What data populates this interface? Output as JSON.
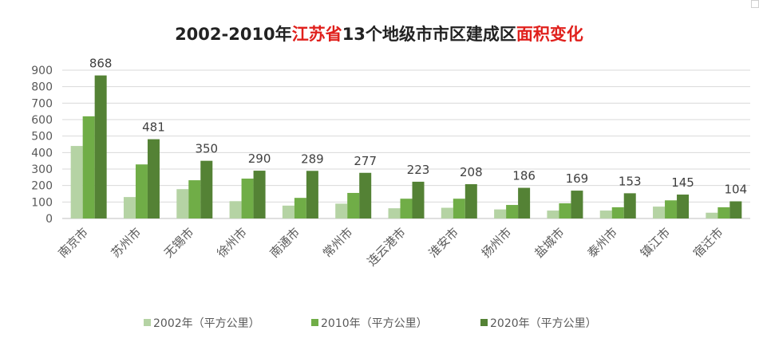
{
  "chart_data": {
    "type": "bar",
    "title": {
      "segments": [
        {
          "text": "2002-2010年",
          "color": "#222222"
        },
        {
          "text": "江苏省",
          "color": "#e0201c"
        },
        {
          "text": "13个地级市市区建成区",
          "color": "#222222"
        },
        {
          "text": "面积变化",
          "color": "#e0201c"
        }
      ]
    },
    "categories": [
      "南京市",
      "苏州市",
      "无锡市",
      "徐州市",
      "南通市",
      "常州市",
      "连云港市",
      "淮安市",
      "扬州市",
      "盐城市",
      "泰州市",
      "镇江市",
      "宿迁市"
    ],
    "series": [
      {
        "name": "2002年（平方公里）",
        "color": "#b5d3a4",
        "values": [
          440,
          130,
          178,
          105,
          78,
          90,
          62,
          65,
          55,
          48,
          48,
          72,
          35
        ]
      },
      {
        "name": "2010年（平方公里）",
        "color": "#70ad47",
        "values": [
          620,
          328,
          232,
          242,
          125,
          155,
          120,
          120,
          82,
          92,
          68,
          110,
          68
        ]
      },
      {
        "name": "2020年（平方公里）",
        "color": "#548235",
        "values": [
          868,
          481,
          350,
          290,
          289,
          277,
          223,
          208,
          186,
          169,
          153,
          145,
          104
        ]
      }
    ],
    "data_labels": {
      "series": "2020年（平方公里）",
      "values": [
        868,
        481,
        350,
        290,
        289,
        277,
        223,
        208,
        186,
        169,
        153,
        145,
        104
      ]
    },
    "y_ticks": [
      0,
      100,
      200,
      300,
      400,
      500,
      600,
      700,
      800,
      900
    ],
    "ylim": [
      0,
      900
    ],
    "grid": true,
    "legend": "bottom",
    "xlabel": "",
    "ylabel": ""
  }
}
